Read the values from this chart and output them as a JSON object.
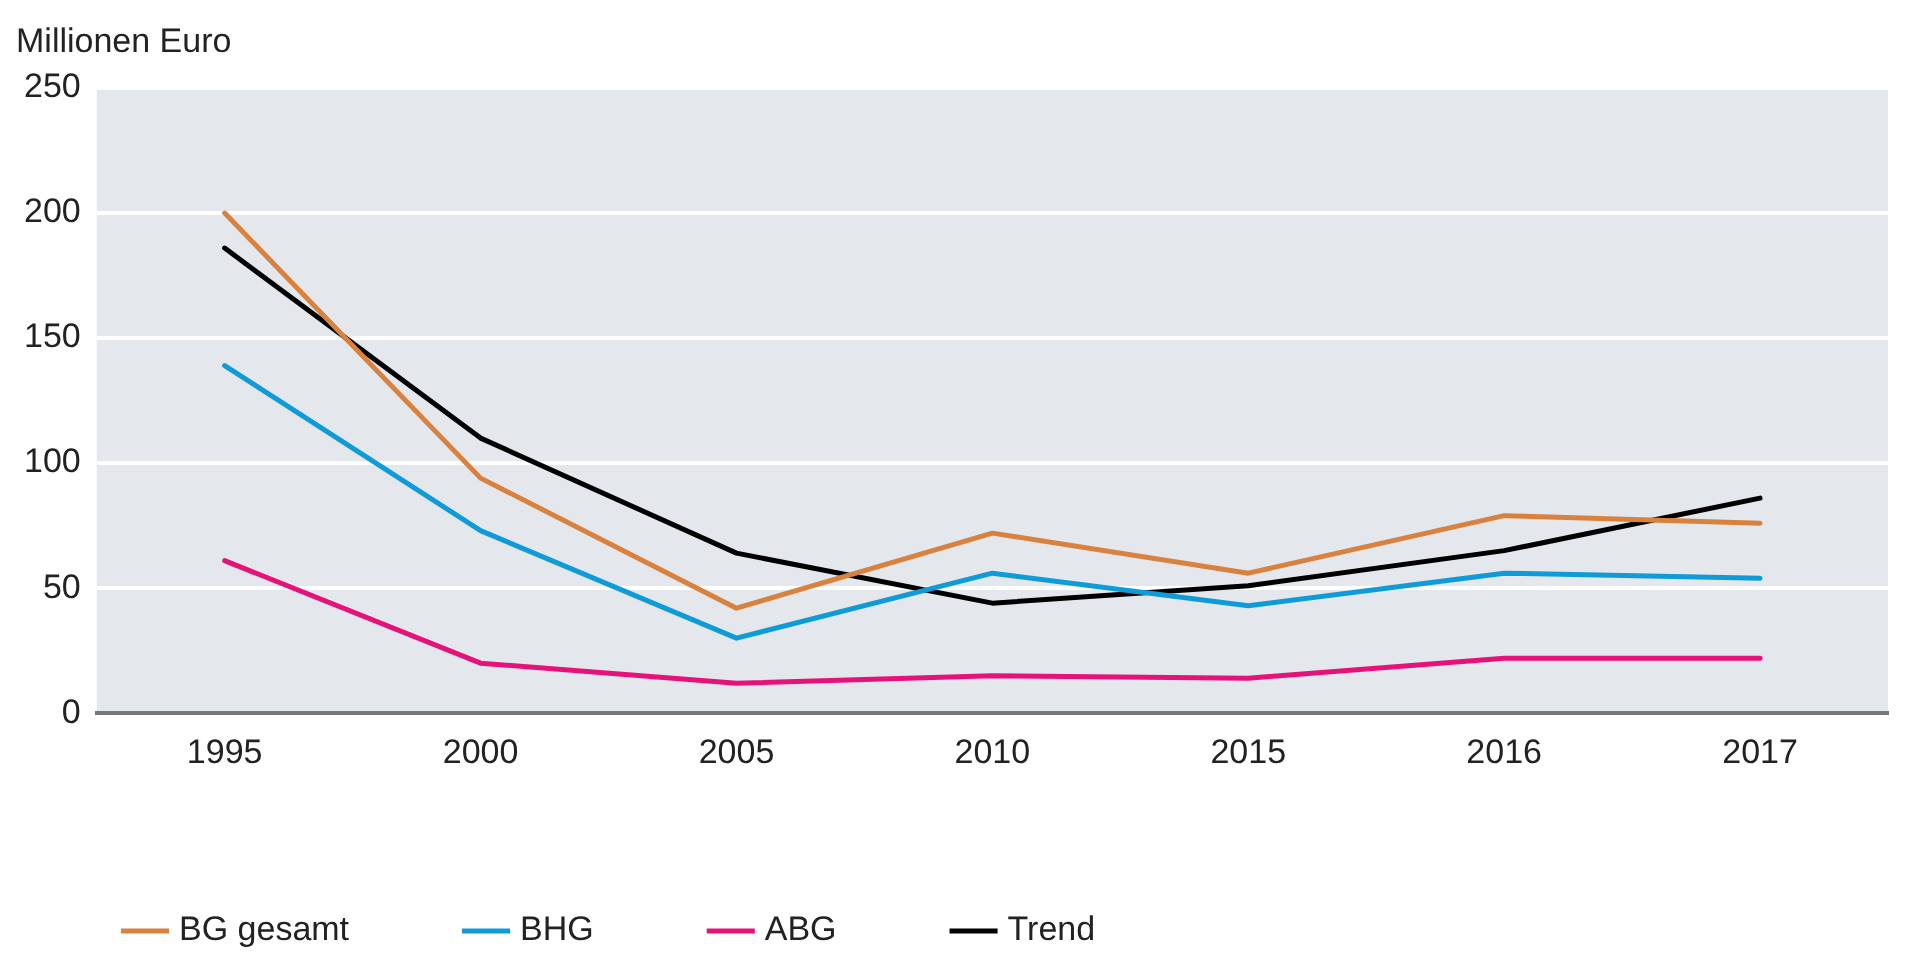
{
  "chart_data": {
    "type": "line",
    "ylabel": "Millionen Euro",
    "categories": [
      "1995",
      "2000",
      "2005",
      "2010",
      "2015",
      "2016",
      "2017"
    ],
    "series": [
      {
        "name": "BG gesamt",
        "color": "#d9823f",
        "values": [
          200,
          94,
          42,
          72,
          56,
          79,
          76
        ]
      },
      {
        "name": "BHG",
        "color": "#0f9bd7",
        "values": [
          139,
          73,
          30,
          56,
          43,
          56,
          54
        ]
      },
      {
        "name": "ABG",
        "color": "#e5127a",
        "values": [
          61,
          20,
          12,
          15,
          14,
          22,
          22
        ]
      },
      {
        "name": "Trend",
        "color": "#000000",
        "values": [
          186,
          110,
          64,
          44,
          51,
          65,
          86
        ]
      }
    ],
    "ylim": [
      0,
      250
    ],
    "yticks": [
      0,
      50,
      100,
      150,
      200,
      250
    ],
    "grid": "y",
    "legend": "bottom left",
    "marker": "none",
    "line_style": "solid"
  }
}
